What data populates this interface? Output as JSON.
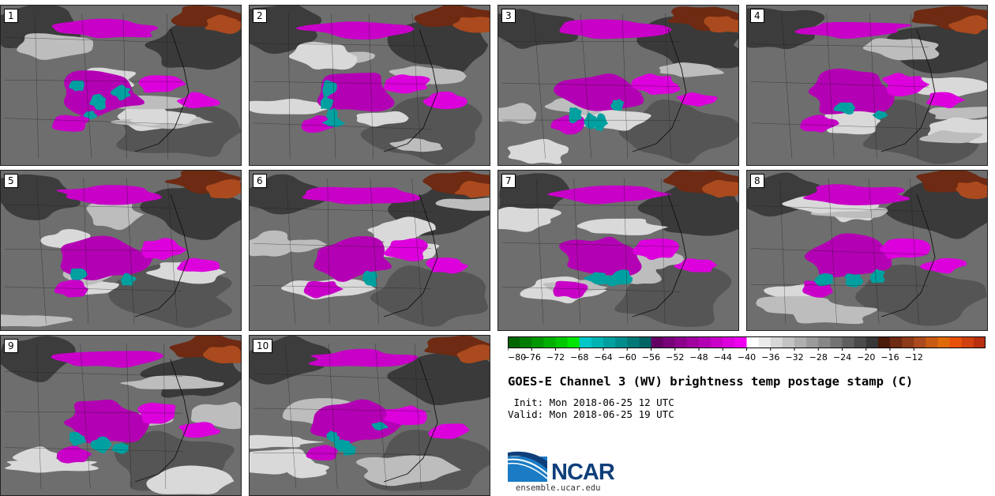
{
  "panels": [
    {
      "label": "1"
    },
    {
      "label": "2"
    },
    {
      "label": "3"
    },
    {
      "label": "4"
    },
    {
      "label": "5"
    },
    {
      "label": "6"
    },
    {
      "label": "7"
    },
    {
      "label": "8"
    },
    {
      "label": "9"
    },
    {
      "label": "10"
    }
  ],
  "colorbar": {
    "tick_labels": [
      "−80",
      "−76",
      "−72",
      "−68",
      "−64",
      "−60",
      "−56",
      "−52",
      "−48",
      "−44",
      "−40",
      "−36",
      "−32",
      "−28",
      "−24",
      "−20",
      "−16",
      "−12"
    ],
    "colors": [
      "#006400",
      "#007d00",
      "#009600",
      "#00af00",
      "#00c800",
      "#00e600",
      "#00c8c8",
      "#00b4b4",
      "#00a0a0",
      "#008c8c",
      "#007878",
      "#006464",
      "#640064",
      "#780078",
      "#8c008c",
      "#a000a0",
      "#b400b4",
      "#c800c8",
      "#dc00dc",
      "#f000f0",
      "#ffffff",
      "#ebebeb",
      "#d7d7d7",
      "#c3c3c3",
      "#afafaf",
      "#9b9b9b",
      "#878787",
      "#737373",
      "#5f5f5f",
      "#4b4b4b",
      "#373737",
      "#4a1a0a",
      "#6e2a12",
      "#8c3a18",
      "#aa4a1e",
      "#c85a14",
      "#e06a0a",
      "#e8500a",
      "#d04010",
      "#b83010"
    ]
  },
  "title": "GOES-E Channel 3 (WV) brightness temp postage stamp (C)",
  "init": " Init: Mon 2018-06-25 12 UTC",
  "valid": "Valid: Mon 2018-06-25 19 UTC",
  "logo": {
    "name": "NCAR",
    "url": "ensemble.ucar.edu"
  }
}
